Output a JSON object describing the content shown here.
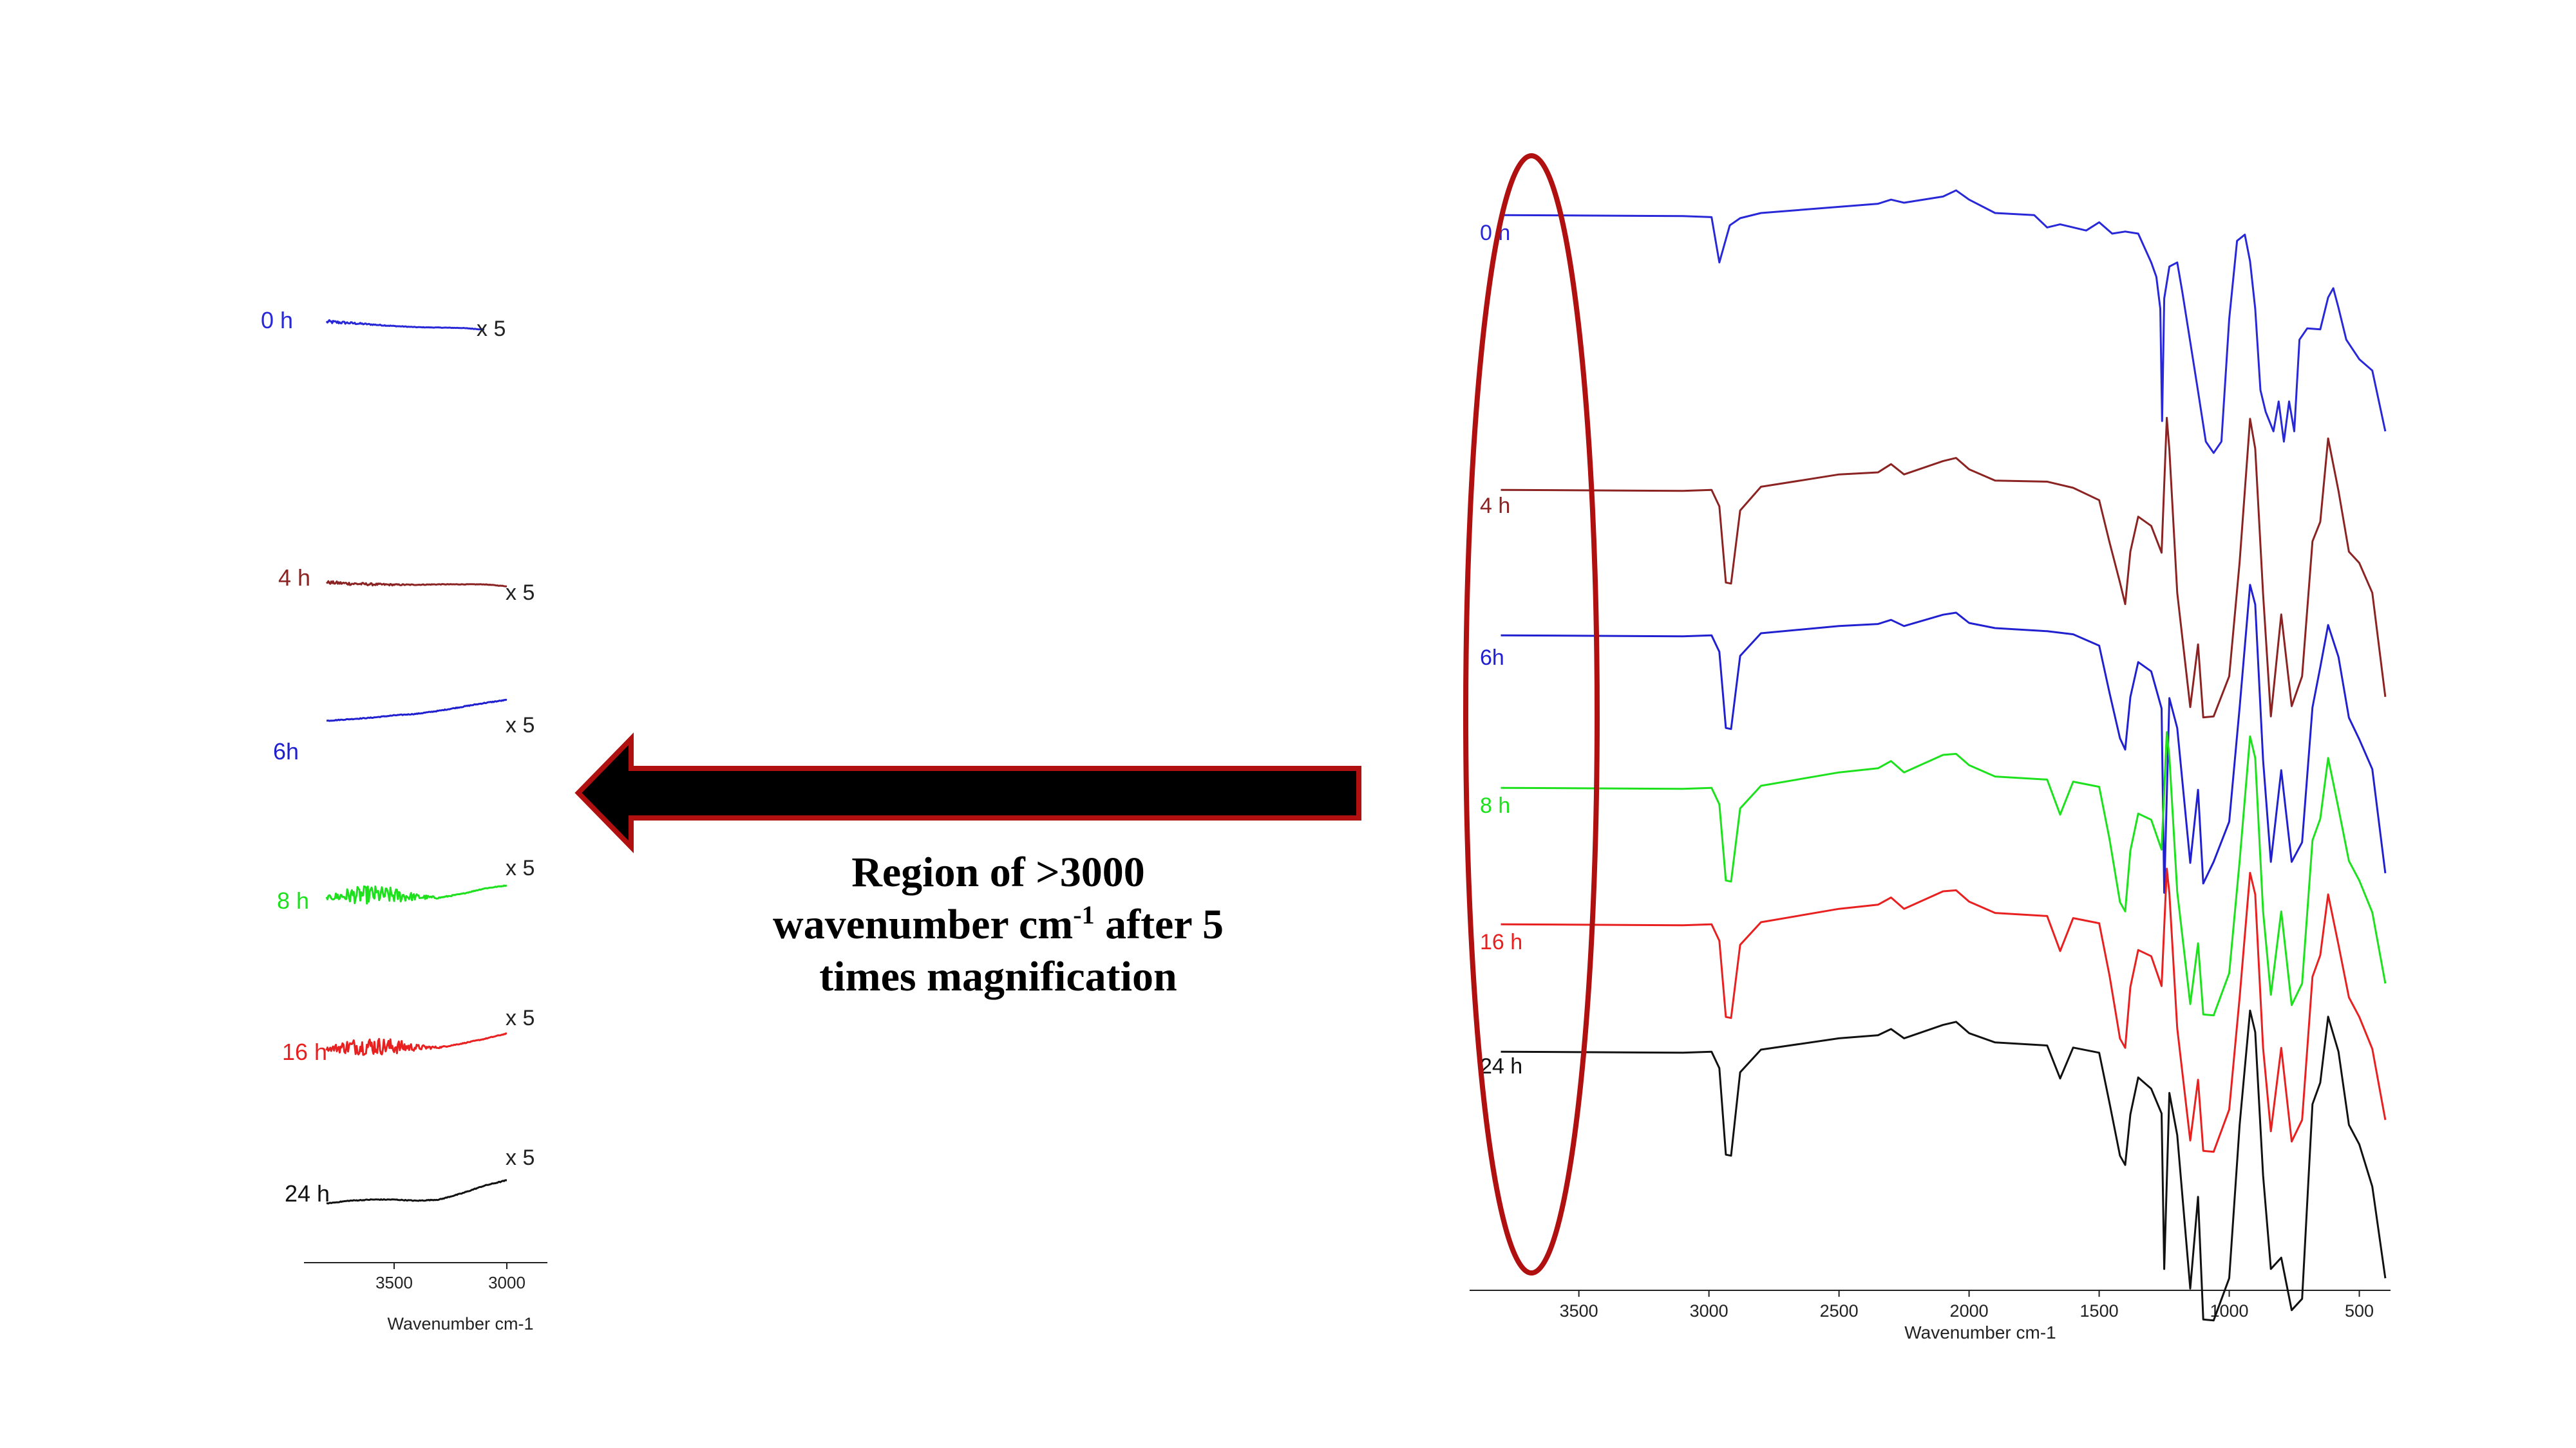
{
  "caption": {
    "line1": "Region of >3000",
    "line2_pre": "wavenumber cm",
    "line2_sup": "-1",
    "line2_post": " after 5",
    "line3": "times magnification"
  },
  "colors": {
    "0 h": "#2828d8",
    "4 h": "#8b2323",
    "6h": "#2020d0",
    "8 h": "#1ee11e",
    "16 h": "#e82020",
    "24 h": "#111111",
    "ellipse": "#b01010",
    "arrow_border": "#b01010",
    "arrow_fill": "#000000"
  },
  "chart_data": [
    {
      "type": "line",
      "title": "",
      "xlabel": "Wavenumber cm-1",
      "ylabel": "",
      "x_reversed": true,
      "xlim": [
        3900,
        2820
      ],
      "xticks": [
        3500,
        3000
      ],
      "xtick_labels": [
        "3500",
        "3000"
      ],
      "grid": false,
      "y_axis_shown": false,
      "magnification_label": "x 5",
      "series": [
        {
          "name": "0 h",
          "x": [
            3800,
            3700,
            3600,
            3500,
            3400,
            3300,
            3200,
            3100
          ],
          "y": [
            0.0,
            -0.15,
            -0.35,
            -0.55,
            -0.7,
            -0.75,
            -0.8,
            -1.0
          ],
          "noise": [
            0.25,
            0.15,
            0.08,
            0.05,
            0.03,
            0.03,
            0.03,
            0.03
          ]
        },
        {
          "name": "4 h",
          "x": [
            3800,
            3700,
            3600,
            3500,
            3400,
            3300,
            3200,
            3100,
            3000
          ],
          "y": [
            0.0,
            -0.15,
            -0.25,
            -0.3,
            -0.3,
            -0.25,
            -0.25,
            -0.25,
            -0.5
          ],
          "noise": [
            0.2,
            0.2,
            0.15,
            0.1,
            0.05,
            0.04,
            0.03,
            0.03,
            0.03
          ]
        },
        {
          "name": "6h",
          "x": [
            3800,
            3700,
            3600,
            3500,
            3400,
            3300,
            3200,
            3100,
            3000
          ],
          "y": [
            0.0,
            0.2,
            0.4,
            0.7,
            0.9,
            1.3,
            1.8,
            2.3,
            2.7
          ],
          "noise": [
            0.05,
            0.05,
            0.05,
            0.05,
            0.05,
            0.05,
            0.06,
            0.06,
            0.06
          ]
        },
        {
          "name": "8 h",
          "x": [
            3800,
            3700,
            3600,
            3500,
            3400,
            3300,
            3200,
            3100,
            3000
          ],
          "y": [
            0.0,
            0.3,
            0.4,
            0.3,
            0.1,
            0.0,
            0.5,
            1.2,
            1.6
          ],
          "noise": [
            0.2,
            1.0,
            1.2,
            1.0,
            0.4,
            0.1,
            0.05,
            0.05,
            0.05
          ]
        },
        {
          "name": "16 h",
          "x": [
            3800,
            3700,
            3600,
            3500,
            3400,
            3300,
            3200,
            3100,
            3000
          ],
          "y": [
            0.0,
            0.3,
            0.4,
            0.3,
            0.2,
            0.2,
            0.7,
            1.3,
            2.0
          ],
          "noise": [
            0.2,
            1.0,
            1.2,
            1.0,
            0.4,
            0.1,
            0.05,
            0.05,
            0.05
          ]
        },
        {
          "name": "24 h",
          "x": [
            3800,
            3700,
            3600,
            3500,
            3400,
            3300,
            3200,
            3100,
            3000
          ],
          "y": [
            0.0,
            0.35,
            0.5,
            0.5,
            0.35,
            0.5,
            1.3,
            2.3,
            3.0
          ],
          "noise": [
            0.04,
            0.05,
            0.05,
            0.05,
            0.05,
            0.05,
            0.05,
            0.05,
            0.06
          ]
        }
      ]
    },
    {
      "type": "line",
      "title": "",
      "xlabel": "Wavenumber cm-1",
      "ylabel": "",
      "x_reversed": true,
      "xlim": [
        3920,
        380
      ],
      "xticks": [
        3500,
        3000,
        2500,
        2000,
        1500,
        1000,
        500
      ],
      "xtick_labels": [
        "3500",
        "3000",
        "2500",
        "2000",
        "1500",
        "1000",
        "500"
      ],
      "grid": false,
      "y_axis_shown": false,
      "stacked_offsets": true,
      "series": [
        {
          "name": "0 h",
          "x": [
            3800,
            3100,
            2990,
            2960,
            2920,
            2880,
            2800,
            2500,
            2350,
            2300,
            2250,
            2100,
            2050,
            2000,
            1900,
            1750,
            1700,
            1650,
            1550,
            1500,
            1450,
            1400,
            1350,
            1300,
            1280,
            1265,
            1258,
            1250,
            1230,
            1200,
            1180,
            1120,
            1090,
            1060,
            1030,
            1000,
            970,
            940,
            920,
            900,
            880,
            860,
            830,
            810,
            790,
            770,
            750,
            730,
            700,
            650,
            620,
            600,
            580,
            550,
            500,
            450,
            400
          ],
          "y": [
            0,
            0,
            -0.2,
            -4.5,
            -1.0,
            -0.2,
            0.2,
            0.9,
            1.1,
            1.6,
            1.2,
            1.9,
            2.4,
            1.6,
            0.2,
            0.1,
            -1.2,
            -0.8,
            -1.5,
            -0.6,
            -1.8,
            -1.5,
            -1.8,
            -4.5,
            -6.0,
            -9.0,
            -20.0,
            -8.0,
            -5.0,
            -4.5,
            -7.5,
            -17.0,
            -22.0,
            -23.0,
            -22.0,
            -10.0,
            -2.5,
            -1.8,
            -4.5,
            -9.0,
            -17.0,
            -19.0,
            -21.0,
            -18.0,
            -22.0,
            -18.0,
            -21.0,
            -12.0,
            -11.0,
            -11.0,
            -8.0,
            -7.0,
            -9.0,
            -12.0,
            -14.0,
            -15.0,
            -21.0
          ]
        },
        {
          "name": "4 h",
          "x": [
            3800,
            3100,
            2990,
            2960,
            2935,
            2915,
            2880,
            2800,
            2500,
            2350,
            2300,
            2250,
            2100,
            2050,
            2000,
            1900,
            1700,
            1600,
            1500,
            1460,
            1420,
            1400,
            1380,
            1350,
            1300,
            1260,
            1240,
            1230,
            1200,
            1150,
            1120,
            1100,
            1060,
            1000,
            960,
            920,
            900,
            870,
            840,
            800,
            760,
            720,
            680,
            650,
            620,
            580,
            540,
            500,
            450,
            400
          ],
          "y": [
            0,
            0,
            0,
            -1.5,
            -9.0,
            -9.0,
            -2.0,
            0.4,
            1.5,
            1.8,
            2.5,
            1.6,
            2.8,
            3.2,
            2.0,
            1.0,
            0.8,
            0.3,
            -1.0,
            -5.0,
            -9.0,
            -11.0,
            -6.0,
            -2.5,
            -3.5,
            -6.0,
            7.0,
            4.0,
            -10.0,
            -21.0,
            -15.0,
            -22.0,
            -22.0,
            -18.0,
            -7.0,
            7.0,
            4.0,
            -10.0,
            -22.0,
            -12.0,
            -21.0,
            -18.0,
            -5.0,
            -3.0,
            5.0,
            0.0,
            -6.0,
            -7.0,
            -10.0,
            -20.0
          ]
        },
        {
          "name": "6h",
          "x": [
            3800,
            3100,
            2990,
            2960,
            2935,
            2915,
            2880,
            2800,
            2500,
            2350,
            2300,
            2250,
            2100,
            2050,
            2000,
            1900,
            1700,
            1600,
            1500,
            1460,
            1420,
            1400,
            1380,
            1350,
            1300,
            1260,
            1250,
            1230,
            1200,
            1150,
            1120,
            1100,
            1060,
            1000,
            960,
            920,
            900,
            870,
            840,
            800,
            760,
            720,
            680,
            650,
            620,
            580,
            540,
            500,
            450,
            400
          ],
          "y": [
            0,
            0,
            0,
            -1.5,
            -9.0,
            -9.0,
            -2.0,
            0.3,
            0.9,
            1.2,
            1.5,
            1.0,
            2.0,
            2.3,
            1.2,
            0.8,
            0.4,
            0.2,
            -1.0,
            -5.5,
            -10.0,
            -11.0,
            -6.0,
            -2.5,
            -3.5,
            -7.0,
            -25.0,
            -6.0,
            -9.0,
            -22.0,
            -15.0,
            -24.0,
            -22.0,
            -18.0,
            -7.0,
            5.0,
            3.0,
            -12.0,
            -22.0,
            -13.0,
            -22.0,
            -20.0,
            -7.0,
            -3.0,
            1.0,
            -2.0,
            -8.0,
            -10.0,
            -13.0,
            -23.0
          ]
        },
        {
          "name": "8 h",
          "x": [
            3800,
            3100,
            2990,
            2960,
            2935,
            2915,
            2880,
            2800,
            2500,
            2350,
            2300,
            2250,
            2100,
            2050,
            2000,
            1900,
            1700,
            1650,
            1600,
            1500,
            1460,
            1420,
            1400,
            1380,
            1350,
            1300,
            1260,
            1240,
            1230,
            1200,
            1150,
            1120,
            1100,
            1060,
            1000,
            960,
            920,
            900,
            870,
            840,
            800,
            760,
            720,
            680,
            650,
            620,
            580,
            540,
            500,
            450,
            400
          ],
          "y": [
            0,
            0,
            0,
            -1.5,
            -9.0,
            -9.0,
            -2.0,
            0.3,
            1.5,
            2.0,
            2.6,
            1.6,
            3.2,
            3.4,
            2.2,
            1.2,
            0.8,
            -2.5,
            0.6,
            0.2,
            -5.0,
            -11.0,
            -12.0,
            -6.0,
            -2.5,
            -3.0,
            -6.0,
            5.5,
            3.0,
            -10.0,
            -21.0,
            -15.0,
            -22.0,
            -22.0,
            -18.0,
            -7.0,
            5.0,
            3.0,
            -12.0,
            -20.0,
            -12.0,
            -21.0,
            -19.0,
            -5.0,
            -3.0,
            3.0,
            -2.0,
            -7.0,
            -9.0,
            -12.0,
            -19.0
          ]
        },
        {
          "name": "16 h",
          "x": [
            3800,
            3100,
            2990,
            2960,
            2935,
            2915,
            2880,
            2800,
            2500,
            2350,
            2300,
            2250,
            2100,
            2050,
            2000,
            1900,
            1700,
            1650,
            1600,
            1500,
            1460,
            1420,
            1400,
            1380,
            1350,
            1300,
            1260,
            1240,
            1230,
            1200,
            1150,
            1120,
            1100,
            1060,
            1000,
            960,
            920,
            900,
            870,
            840,
            800,
            760,
            720,
            680,
            650,
            620,
            580,
            540,
            500,
            450,
            400
          ],
          "y": [
            0,
            0,
            0,
            -1.5,
            -9.0,
            -9.0,
            -2.0,
            0.3,
            1.5,
            2.0,
            2.6,
            1.6,
            3.2,
            3.4,
            2.2,
            1.2,
            0.8,
            -2.5,
            0.6,
            0.2,
            -5.0,
            -11.0,
            -12.0,
            -6.0,
            -2.5,
            -3.0,
            -6.0,
            5.5,
            3.0,
            -10.0,
            -21.0,
            -15.0,
            -22.0,
            -22.0,
            -18.0,
            -7.0,
            5.0,
            3.0,
            -12.0,
            -20.0,
            -12.0,
            -21.0,
            -19.0,
            -5.0,
            -3.0,
            3.0,
            -2.0,
            -7.0,
            -9.0,
            -12.0,
            -19.0
          ]
        },
        {
          "name": "24 h",
          "x": [
            3800,
            3100,
            2990,
            2960,
            2935,
            2915,
            2880,
            2800,
            2500,
            2350,
            2300,
            2250,
            2100,
            2050,
            2000,
            1900,
            1700,
            1650,
            1600,
            1500,
            1460,
            1420,
            1400,
            1380,
            1350,
            1300,
            1260,
            1250,
            1230,
            1200,
            1150,
            1120,
            1100,
            1060,
            1000,
            960,
            920,
            900,
            870,
            840,
            800,
            760,
            720,
            680,
            650,
            620,
            580,
            540,
            500,
            450,
            400
          ],
          "y": [
            0,
            0,
            0,
            -1.5,
            -10.0,
            -10.0,
            -2.0,
            0.3,
            1.3,
            1.7,
            2.2,
            1.4,
            2.6,
            3.0,
            1.8,
            1.0,
            0.6,
            -2.5,
            0.4,
            0.0,
            -5.0,
            -10.0,
            -11.0,
            -6.0,
            -2.5,
            -3.5,
            -6.0,
            -21.0,
            -4.0,
            -8.0,
            -23.0,
            -14.0,
            -26.0,
            -26.0,
            -22.0,
            -7.0,
            4.0,
            2.0,
            -12.0,
            -21.0,
            -20.0,
            -25.0,
            -24.0,
            -5.0,
            -3.0,
            3.5,
            0.0,
            -7.0,
            -9.0,
            -13.0,
            -22.0
          ]
        }
      ]
    }
  ]
}
